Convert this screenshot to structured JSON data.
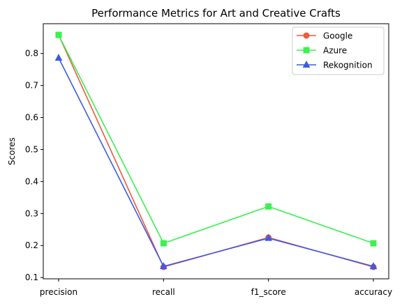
{
  "chart_data": {
    "type": "line",
    "title": "Performance Metrics for Art and Creative Crafts",
    "xlabel": "",
    "ylabel": "Scores",
    "categories": [
      "precision",
      "recall",
      "f1_score",
      "accuracy"
    ],
    "ylim": [
      0.096,
      0.893
    ],
    "yticks": [
      "0.1",
      "0.2",
      "0.3",
      "0.4",
      "0.5",
      "0.6",
      "0.7",
      "0.8"
    ],
    "grid": false,
    "legend_position": "top-right",
    "series": [
      {
        "name": "Google",
        "color": "#f05a3c",
        "marker": "circle",
        "values": [
          0.858,
          0.133,
          0.225,
          0.133
        ]
      },
      {
        "name": "Azure",
        "color": "#3cf050",
        "marker": "square",
        "values": [
          0.858,
          0.207,
          0.322,
          0.207
        ]
      },
      {
        "name": "Rekognition",
        "color": "#3c5ae6",
        "marker": "triangle",
        "values": [
          0.786,
          0.135,
          0.223,
          0.135
        ]
      }
    ]
  }
}
